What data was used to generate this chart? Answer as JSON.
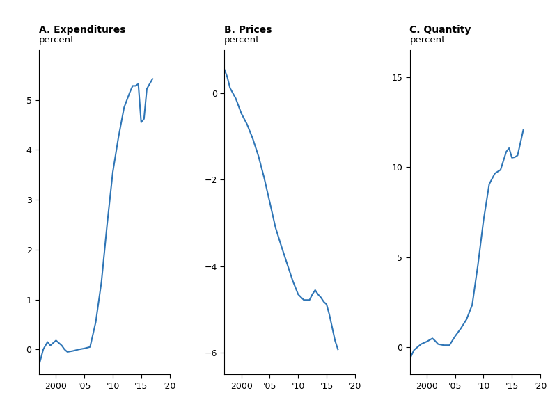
{
  "title_A": "A. Expenditures",
  "title_B": "B. Prices",
  "title_C": "C. Quantity",
  "ylabel": "percent",
  "line_color": "#2e75b6",
  "line_width": 1.5,
  "exp_x": [
    1997,
    1997.75,
    1998.5,
    1999,
    2000,
    2001,
    2001.5,
    2002,
    2003,
    2004,
    2005,
    2006,
    2007,
    2008,
    2009,
    2010,
    2011,
    2012,
    2013,
    2013.5,
    2014,
    2014.5,
    2015,
    2015.5,
    2016,
    2017
  ],
  "exp_y": [
    -0.32,
    0.0,
    0.15,
    0.08,
    0.18,
    0.08,
    0.0,
    -0.05,
    -0.03,
    0.0,
    0.02,
    0.05,
    0.55,
    1.35,
    2.5,
    3.55,
    4.25,
    4.85,
    5.15,
    5.28,
    5.28,
    5.32,
    4.55,
    4.62,
    5.22,
    5.42
  ],
  "price_x": [
    1997,
    1997.5,
    1998,
    1999,
    2000,
    2001,
    2002,
    2003,
    2004,
    2005,
    2006,
    2007,
    2008,
    2009,
    2010,
    2011,
    2012,
    2012.5,
    2013,
    2013.5,
    2014,
    2014.5,
    2015,
    2015.5,
    2016,
    2016.5,
    2017
  ],
  "price_y": [
    0.55,
    0.38,
    0.12,
    -0.12,
    -0.47,
    -0.72,
    -1.05,
    -1.45,
    -1.95,
    -2.52,
    -3.1,
    -3.52,
    -3.92,
    -4.32,
    -4.65,
    -4.78,
    -4.78,
    -4.65,
    -4.55,
    -4.65,
    -4.72,
    -4.82,
    -4.88,
    -5.12,
    -5.42,
    -5.72,
    -5.92
  ],
  "qty_x": [
    1997,
    1997.75,
    1998.5,
    1999,
    2000,
    2001,
    2001.5,
    2002,
    2003,
    2004,
    2005,
    2006,
    2007,
    2008,
    2009,
    2010,
    2011,
    2012,
    2013,
    2014,
    2014.5,
    2015,
    2015.5,
    2016,
    2017
  ],
  "qty_y": [
    -0.65,
    -0.15,
    0.05,
    0.18,
    0.32,
    0.5,
    0.35,
    0.18,
    0.12,
    0.12,
    0.62,
    1.05,
    1.55,
    2.35,
    4.55,
    7.05,
    9.05,
    9.65,
    9.85,
    10.85,
    11.05,
    10.52,
    10.55,
    10.65,
    12.05
  ],
  "exp_ylim": [
    -0.5,
    6.0
  ],
  "exp_yticks": [
    0,
    1,
    2,
    3,
    4,
    5
  ],
  "price_ylim": [
    -6.5,
    1.0
  ],
  "price_yticks": [
    0,
    -2,
    -4,
    -6
  ],
  "qty_ylim": [
    -1.5,
    16.5
  ],
  "qty_yticks": [
    0,
    5,
    10,
    15
  ],
  "xlim": [
    1997,
    2020
  ],
  "xticks": [
    2000,
    2005,
    2010,
    2015,
    2020
  ],
  "xticklabels": [
    "2000",
    "'05",
    "'10",
    "'15",
    "'20"
  ],
  "bg_color": "#ffffff",
  "title_fontsize": 10,
  "label_fontsize": 9.5,
  "tick_fontsize": 9
}
